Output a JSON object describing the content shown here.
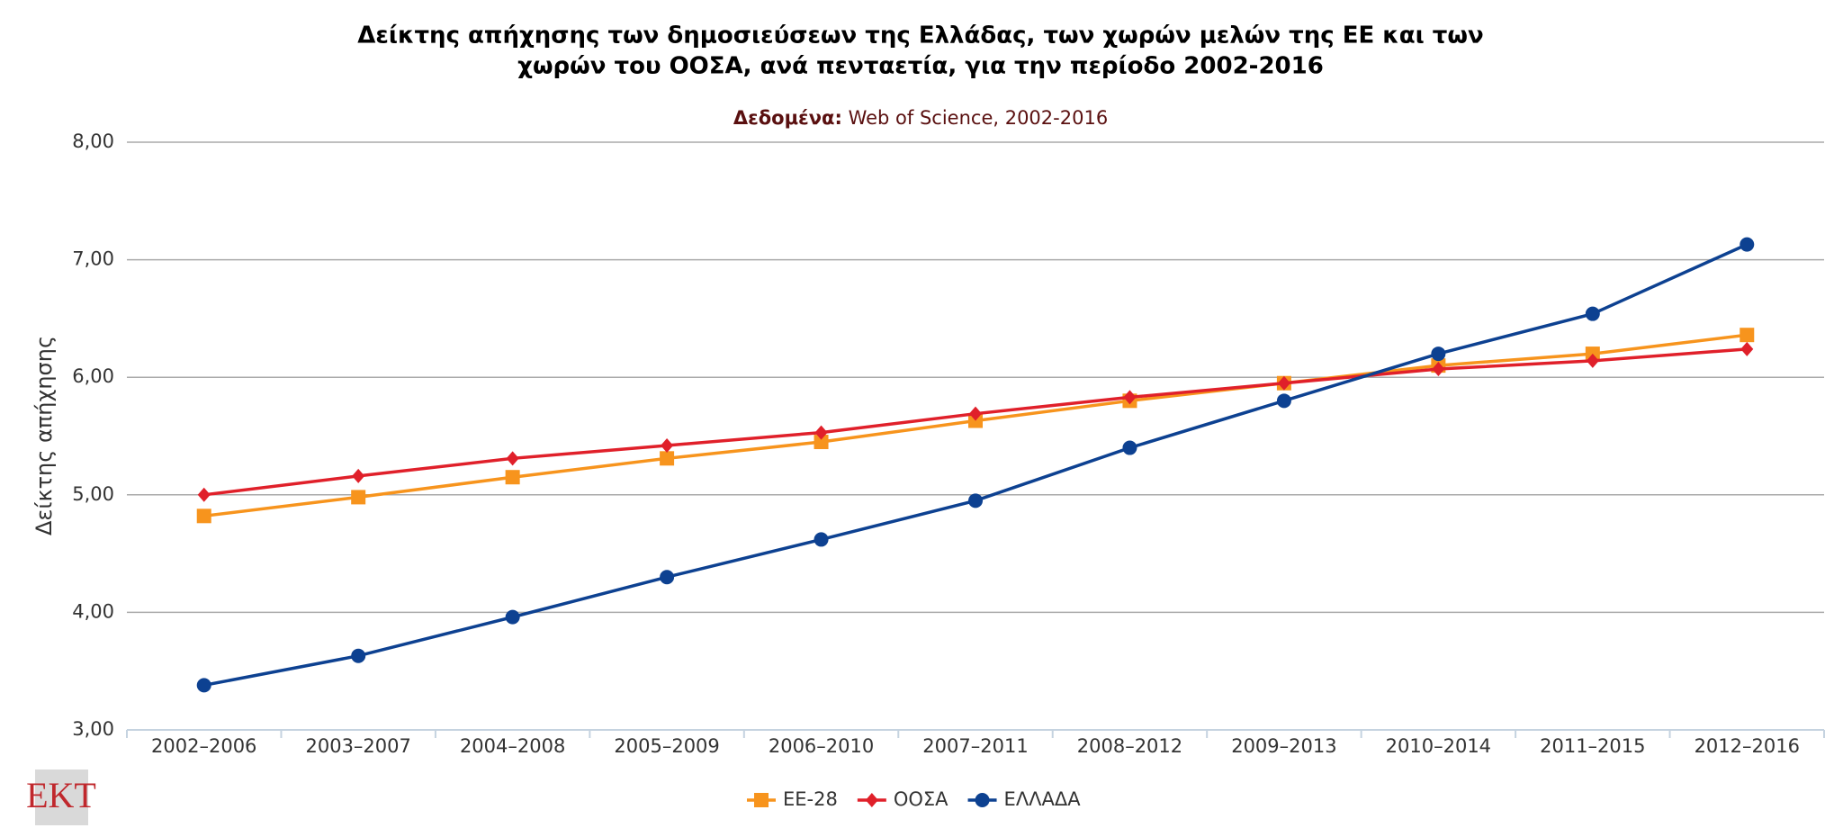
{
  "chart_data": {
    "type": "line",
    "title": [
      "Δείκτης απήχησης των δημοσιεύσεων της Ελλάδας, των χωρών μελών της ΕΕ και των",
      "χωρών του ΟΟΣΑ, ανά πενταετία, για την περίοδο 2002-2016"
    ],
    "subtitle": {
      "label": "Δεδομένα:",
      "text": "Web of Science, 2002-2016"
    },
    "y_label": "Δείκτης απήχησης",
    "logo": "EKT",
    "categories": [
      "2002–2006",
      "2003–2007",
      "2004–2008",
      "2005–2009",
      "2006–2010",
      "2007–2011",
      "2008–2012",
      "2009–2013",
      "2010–2014",
      "2011–2015",
      "2012–2016"
    ],
    "series": [
      {
        "name": "ΕΕ-28",
        "color": "#f7941d",
        "marker": "square",
        "values": [
          4.82,
          4.98,
          5.15,
          5.31,
          5.45,
          5.63,
          5.8,
          5.95,
          6.1,
          6.2,
          6.36
        ]
      },
      {
        "name": "ΟΟΣΑ",
        "color": "#e0202a",
        "marker": "diamond",
        "values": [
          5.0,
          5.16,
          5.31,
          5.42,
          5.53,
          5.69,
          5.83,
          5.95,
          6.07,
          6.14,
          6.24
        ]
      },
      {
        "name": "ΕΛΛΑΔΑ",
        "color": "#0d4191",
        "marker": "circle",
        "values": [
          3.38,
          3.63,
          3.96,
          4.3,
          4.62,
          4.95,
          5.4,
          5.8,
          6.2,
          6.54,
          7.13
        ]
      }
    ],
    "ylim": [
      3,
      8
    ],
    "yticks": [
      {
        "value": 3,
        "label": "3,00"
      },
      {
        "value": 4,
        "label": "4,00"
      },
      {
        "value": 5,
        "label": "5,00"
      },
      {
        "value": 6,
        "label": "6,00"
      },
      {
        "value": 7,
        "label": "7,00"
      },
      {
        "value": 8,
        "label": "8,00"
      }
    ],
    "grid": true,
    "legend": "bottom"
  }
}
